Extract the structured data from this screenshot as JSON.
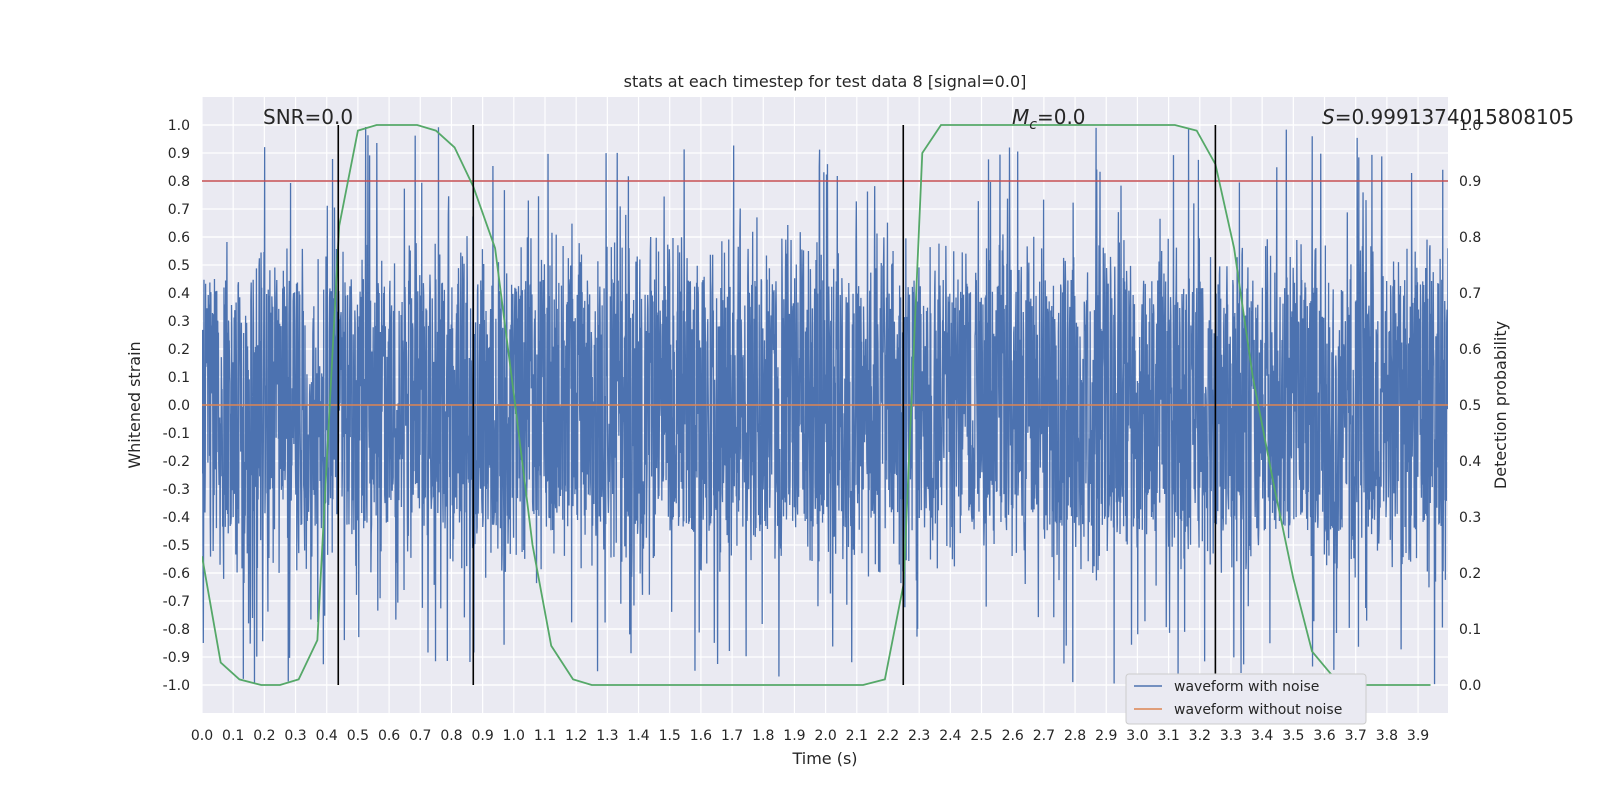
{
  "chart_data": {
    "type": "line",
    "title": "stats at each timestep for test data 8 [signal=0.0]",
    "xlabel": "Time (s)",
    "ylabel": "Whitened strain",
    "y2label": "Detection probability",
    "xlim": [
      0.0,
      3.996
    ],
    "ylim": [
      -1.1,
      1.1
    ],
    "y2lim": [
      -0.05,
      1.05
    ],
    "x_ticks": [
      "0.0",
      "0.1",
      "0.2",
      "0.3",
      "0.4",
      "0.5",
      "0.6",
      "0.7",
      "0.8",
      "0.9",
      "1.0",
      "1.1",
      "1.2",
      "1.3",
      "1.4",
      "1.5",
      "1.6",
      "1.7",
      "1.8",
      "1.9",
      "2.0",
      "2.1",
      "2.2",
      "2.3",
      "2.4",
      "2.5",
      "2.6",
      "2.7",
      "2.8",
      "2.9",
      "3.0",
      "3.1",
      "3.2",
      "3.3",
      "3.4",
      "3.5",
      "3.6",
      "3.7",
      "3.8",
      "3.9"
    ],
    "y_ticks": [
      "1.0",
      "0.9",
      "0.8",
      "0.7",
      "0.6",
      "0.5",
      "0.4",
      "0.3",
      "0.2",
      "0.1",
      "0.0",
      "-0.1",
      "-0.2",
      "-0.3",
      "-0.4",
      "-0.5",
      "-0.6",
      "-0.7",
      "-0.8",
      "-0.9",
      "-1.0"
    ],
    "y2_ticks": [
      "1.0",
      "0.9",
      "0.8",
      "0.7",
      "0.6",
      "0.5",
      "0.4",
      "0.3",
      "0.2",
      "0.1",
      "0.0"
    ],
    "annotations": {
      "snr": "SNR=0.0",
      "mc_symbol": "M",
      "mc_sub": "c",
      "mc_value": "=0.0",
      "s_symbol": "S",
      "s_value": "=0.9991374015808105"
    },
    "series": [
      {
        "name": "waveform with noise",
        "color": "#4c72b0",
        "style": "dense noise, amplitude about ±1.0"
      },
      {
        "name": "waveform without noise",
        "color": "#dd8452",
        "y_constant": 0.0
      },
      {
        "color": "#55a868",
        "axis": "right",
        "x": [
          0.0,
          0.06,
          0.12,
          0.19,
          0.25,
          0.31,
          0.37,
          0.44,
          0.5,
          0.56,
          0.62,
          0.69,
          0.75,
          0.81,
          0.87,
          0.94,
          1.0,
          1.06,
          1.12,
          1.19,
          1.25,
          1.31,
          1.37,
          1.44,
          1.5,
          1.56,
          1.62,
          1.69,
          1.75,
          1.81,
          1.87,
          1.94,
          2.0,
          2.06,
          2.12,
          2.19,
          2.25,
          2.31,
          2.37,
          2.44,
          2.5,
          2.56,
          2.62,
          2.69,
          2.75,
          2.81,
          2.87,
          2.94,
          3.0,
          3.06,
          3.12,
          3.19,
          3.25,
          3.31,
          3.37,
          3.44,
          3.5,
          3.56,
          3.62,
          3.69,
          3.75,
          3.81,
          3.87,
          3.94
        ],
        "y": [
          0.23,
          0.04,
          0.01,
          0.0,
          0.0,
          0.01,
          0.08,
          0.82,
          0.99,
          1.0,
          1.0,
          1.0,
          0.99,
          0.96,
          0.89,
          0.78,
          0.52,
          0.25,
          0.07,
          0.01,
          0.0,
          0.0,
          0.0,
          0.0,
          0.0,
          0.0,
          0.0,
          0.0,
          0.0,
          0.0,
          0.0,
          0.0,
          0.0,
          0.0,
          0.0,
          0.01,
          0.18,
          0.95,
          1.0,
          1.0,
          1.0,
          1.0,
          1.0,
          1.0,
          1.0,
          1.0,
          1.0,
          1.0,
          1.0,
          1.0,
          1.0,
          0.99,
          0.93,
          0.78,
          0.55,
          0.35,
          0.19,
          0.06,
          0.02,
          0.0,
          0.0,
          0.0,
          0.0,
          0.0
        ]
      },
      {
        "color": "#c44e52",
        "axis": "right",
        "y_constant": 0.9
      }
    ],
    "vlines_x": [
      0.437,
      0.87,
      2.249,
      3.25
    ],
    "vline_color": "#000000",
    "grid": true,
    "legend_position": "lower right"
  }
}
